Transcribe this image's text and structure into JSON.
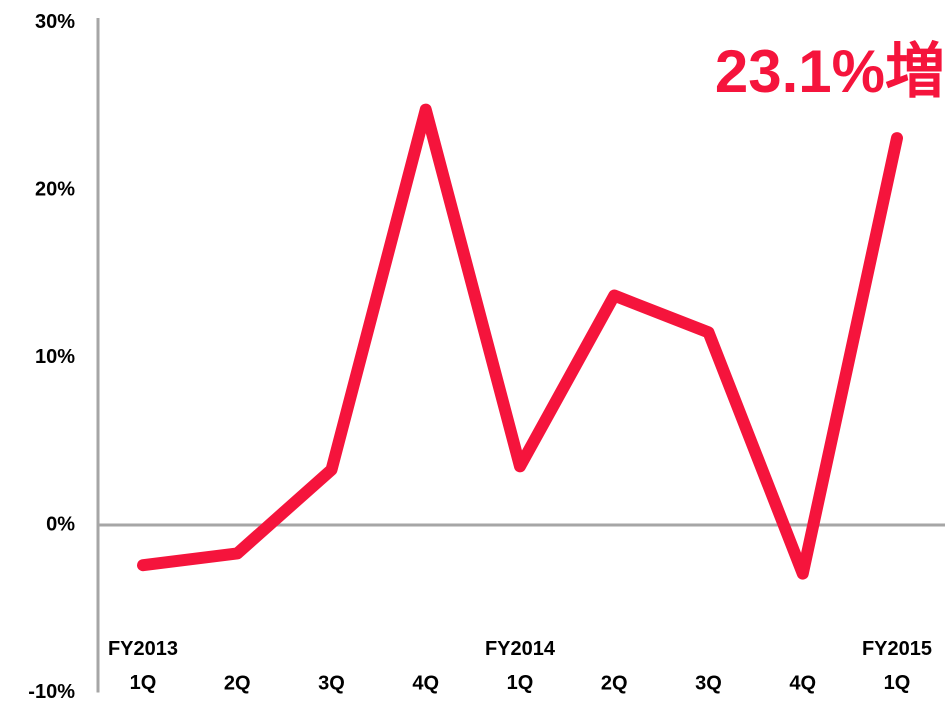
{
  "chart_data": {
    "type": "line",
    "annotation": "23.1%増",
    "categories": [
      "FY2013 1Q",
      "2Q",
      "3Q",
      "4Q",
      "FY2014 1Q",
      "2Q",
      "3Q",
      "4Q",
      "FY2015 1Q"
    ],
    "series": [
      {
        "name": null,
        "color": "#f5143c",
        "values": [
          -2.4,
          -1.7,
          3.3,
          24.8,
          3.5,
          13.7,
          11.5,
          -2.9,
          23.1
        ]
      }
    ],
    "ylim": [
      -10,
      30
    ],
    "yticks": [
      {
        "value": -10,
        "label": "-10%"
      },
      {
        "value": 0,
        "label": "0%"
      },
      {
        "value": 10,
        "label": "10%"
      },
      {
        "value": 20,
        "label": "20%"
      },
      {
        "value": 30,
        "label": "30%"
      }
    ],
    "grid": false
  }
}
